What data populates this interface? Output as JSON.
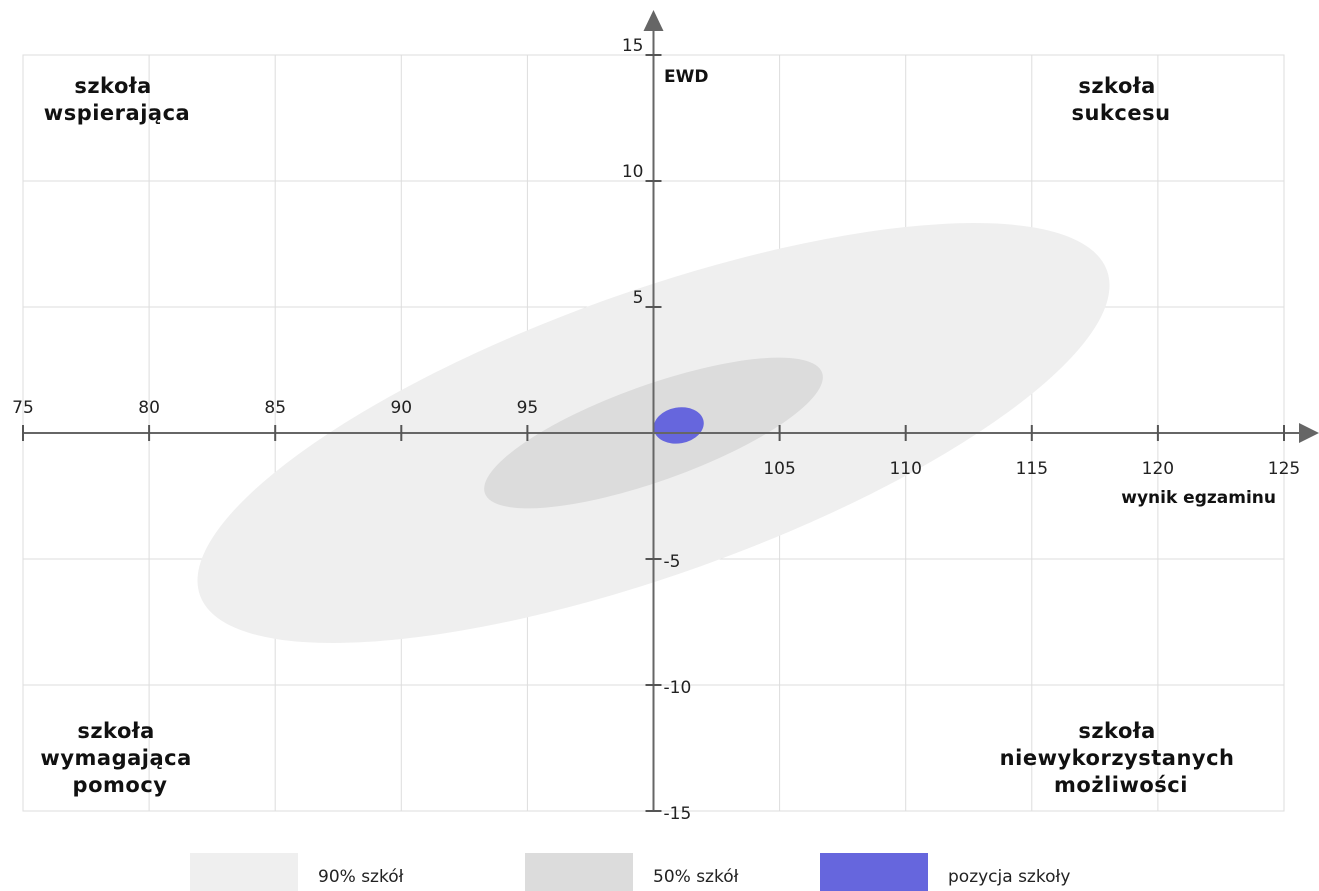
{
  "chart_data": {
    "type": "scatter",
    "xlabel": "wynik egzaminu",
    "ylabel": "EWD",
    "xlim": [
      75,
      125
    ],
    "ylim": [
      -15,
      15
    ],
    "grid": true,
    "x_ticks": [
      75,
      80,
      85,
      90,
      95,
      100,
      105,
      110,
      115,
      120,
      125
    ],
    "y_ticks": [
      -15,
      -10,
      -5,
      5,
      10,
      15
    ],
    "x_tick_labels": [
      "75",
      "80",
      "85",
      "90",
      "95",
      "105",
      "110",
      "115",
      "120",
      "125"
    ],
    "y_tick_labels": [
      "15",
      "10",
      "5",
      "-5",
      "-10",
      "-15"
    ],
    "quadrants": {
      "top_left": [
        "szkoła",
        "wspierająca"
      ],
      "top_right": [
        "szkoła",
        "sukcesu"
      ],
      "bottom_left": [
        "szkoła",
        "wymagająca",
        "pomocy"
      ],
      "bottom_right": [
        "szkoła",
        "niewykorzystanych",
        "możliwości"
      ]
    },
    "series": [
      {
        "name": "90% szkół",
        "shape": "ellipse",
        "center": [
          100,
          0
        ],
        "semi_major": 19.1,
        "semi_minor": 5.9,
        "angle_deg": 19.7,
        "color": "#efefef"
      },
      {
        "name": "50% szkół",
        "shape": "ellipse",
        "center": [
          100,
          0
        ],
        "semi_major": 7.1,
        "semi_minor": 2.0,
        "angle_deg": 19.7,
        "color": "#dcdcdc"
      },
      {
        "name": "pozycja szkoły",
        "shape": "ellipse",
        "center": [
          101,
          0.3
        ],
        "semi_major": 1.0,
        "semi_minor": 0.75,
        "angle_deg": 10,
        "color": "#6666dd"
      }
    ],
    "legend": {
      "placement": "bottom",
      "items": [
        "90% szkół",
        "50% szkół",
        "pozycja szkoły"
      ],
      "colors": [
        "#efefef",
        "#dcdcdc",
        "#6666dd"
      ]
    }
  }
}
